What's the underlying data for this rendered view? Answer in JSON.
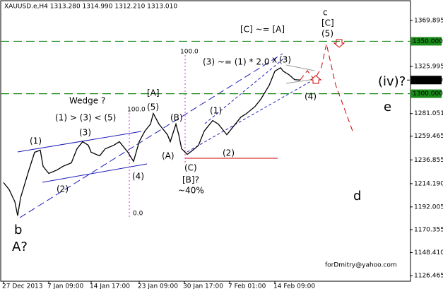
{
  "chart_data": {
    "type": "line",
    "title": "XAUUSD.e,H4  1313.280 1314.990 1312.210 1313.010",
    "color": "#000000",
    "x": [
      0,
      2,
      4,
      5,
      6,
      9,
      11,
      13,
      14,
      16,
      19,
      21,
      24,
      26,
      28,
      30,
      31,
      34,
      36,
      39,
      41,
      44,
      46,
      48,
      50,
      52,
      53,
      55,
      58,
      59,
      61,
      62,
      63,
      65,
      67,
      69,
      71,
      74,
      76,
      79,
      81,
      84,
      86,
      89,
      91,
      94,
      96,
      98,
      99,
      101,
      103,
      105
    ],
    "values": [
      1215.2,
      1208.5,
      1197,
      1183.6,
      1200.4,
      1227.3,
      1244.1,
      1246.1,
      1230.7,
      1223.9,
      1227.3,
      1230.7,
      1234,
      1247.5,
      1254.2,
      1250.8,
      1244.1,
      1240.7,
      1247.5,
      1250.8,
      1254.2,
      1244.1,
      1235.4,
      1254.2,
      1264.3,
      1271,
      1281.1,
      1271,
      1260.9,
      1254.2,
      1271,
      1260.9,
      1247.5,
      1242.1,
      1246.1,
      1250.8,
      1264.3,
      1274.4,
      1271,
      1260.9,
      1267.6,
      1277.7,
      1281.1,
      1287.8,
      1294.6,
      1308,
      1321.4,
      1324.8,
      1321.4,
      1318.1,
      1313.4,
      1313.01
    ],
    "xlim": [
      -1,
      143.75
    ],
    "xticks": [
      {
        "value": 0,
        "label": "27 Dec 2013"
      },
      {
        "value": 16,
        "label": "7 Jan 09:00"
      },
      {
        "value": 31,
        "label": "14 Jan 17:00"
      },
      {
        "value": 48,
        "label": "23 Jan 09:00"
      },
      {
        "value": 64,
        "label": "30 Jan 17:00"
      },
      {
        "value": 80,
        "label": "7 Feb 01:00"
      },
      {
        "value": 96,
        "label": "14 Feb 09:00"
      }
    ],
    "ylim": [
      1121.1,
      1388.7
    ],
    "yticks": [
      1369.895,
      1325.995,
      1281.051,
      1259.465,
      1236.855,
      {
        "value": 1214.19,
        "label": "1214.190"
      },
      1192.005,
      1170.355,
      {
        "value": 1148.41,
        "label": "1148.410"
      },
      1126.465
    ],
    "levels": [
      {
        "value": 1350,
        "label": "1350.000",
        "color": "#1a8a1a"
      },
      {
        "value": 1300,
        "label": "1300.000",
        "color": "#1a8a1a"
      }
    ],
    "current_price": {
      "value": 1313.01,
      "label": "1313.010"
    },
    "annotations": [
      {
        "text": "c",
        "color": "#8b1a1a"
      },
      {
        "text": "[C]",
        "color": "#1a8a1a"
      },
      {
        "text": "(5)",
        "color": "#1c1cbb"
      },
      {
        "text": "[C] ~= [A]",
        "color": "#cc33cc"
      },
      {
        "text": "100.0",
        "color": "#cc33cc"
      },
      {
        "text": "(3) ~= (1) * 2.0",
        "color": "#1c1cbb"
      },
      {
        "text": "x",
        "color": "#1c1cbb"
      },
      {
        "text": "(3)",
        "color": "#1c1cbb"
      },
      {
        "text": "(iv)?",
        "color": "#1c1cbb"
      },
      {
        "text": "[A]",
        "color": "#1a8a1a"
      },
      {
        "text": "Wedge ?",
        "color": "#1c1cbb"
      },
      {
        "text": "(5)",
        "color": "#1c1cbb"
      },
      {
        "text": "100.0",
        "color": "#cc33cc"
      },
      {
        "text": "(B)",
        "color": "#1c1cbb"
      },
      {
        "text": "(1)",
        "color": "#1c1cbb"
      },
      {
        "text": "(1) > (3) < (5)",
        "color": "#1c1cbb"
      },
      {
        "text": "e",
        "color": "#8b1a1a"
      },
      {
        "text": "(3)",
        "color": "#1c1cbb"
      },
      {
        "text": "(1)",
        "color": "#1c1cbb"
      },
      {
        "text": "(2)",
        "color": "#1c1cbb"
      },
      {
        "text": "(A)",
        "color": "#1c1cbb"
      },
      {
        "text": "(4)",
        "color": "#1c1cbb"
      },
      {
        "text": "(C)",
        "color": "#1c1cbb"
      },
      {
        "text": "(4)",
        "color": "#1c1cbb"
      },
      {
        "text": "[B]?",
        "color": "#1a8a1a"
      },
      {
        "text": "~40%",
        "color": "#1c1cbb"
      },
      {
        "text": "(2)",
        "color": "#1c1cbb"
      },
      {
        "text": "d",
        "color": "#8b1a1a"
      },
      {
        "text": "0.0",
        "color": "#cc33cc"
      },
      {
        "text": "b",
        "color": "#8b1a1a"
      },
      {
        "text": "A?",
        "color": "#aaaaaa"
      },
      {
        "text": "forDmitry@yahoo.com",
        "color": "#000000"
      }
    ]
  }
}
